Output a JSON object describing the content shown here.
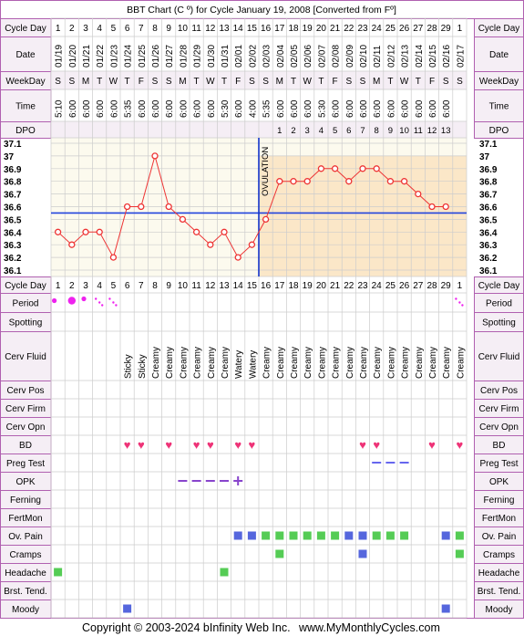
{
  "title": "BBT Chart (C º) for Cycle January 19, 2008  [Converted from Fº]",
  "footer": {
    "copyright": "Copyright © 2003-2024 bInfinity Web Inc.",
    "site": "www.MyMonthlyCycles.com"
  },
  "row_labels": {
    "cycle_day": "Cycle Day",
    "date": "Date",
    "weekday": "WeekDay",
    "time": "Time",
    "dpo": "DPO",
    "period": "Period",
    "spotting": "Spotting",
    "cerv_fluid": "Cerv Fluid",
    "cerv_pos": "Cerv Pos",
    "cerv_firm": "Cerv Firm",
    "cerv_opn": "Cerv Opn",
    "bd": "BD",
    "preg_test": "Preg Test",
    "opk": "OPK",
    "ferning": "Ferning",
    "fertmon": "FertMon",
    "ov_pain": "Ov. Pain",
    "cramps": "Cramps",
    "headache": "Headache",
    "brst_tend": "Brst. Tend.",
    "moody": "Moody"
  },
  "ovulation_label": "OVULATION",
  "colors": {
    "border": "#b060b0",
    "header_bg": "#f5eef5",
    "grid": "#cccccc",
    "pre_bg": "#fcfaee",
    "post_bg": "#fbe7c8",
    "temp_line": "#ee3333",
    "coverline": "#2244dd",
    "ovulation_line": "#1133cc",
    "period": "#ee22ee",
    "heart": "#ee3377",
    "opk": "#8844cc",
    "preg": "#6666ee",
    "ov_pain": "#5566dd",
    "green_mark": "#55cc55",
    "blue_mark": "#5566dd"
  },
  "chart_data": {
    "type": "line",
    "title": "BBT Chart (C º) for Cycle January 19, 2008  [Converted from Fº]",
    "cycle_days": [
      1,
      2,
      3,
      4,
      5,
      6,
      7,
      8,
      9,
      10,
      11,
      12,
      13,
      14,
      15,
      16,
      17,
      18,
      19,
      20,
      21,
      22,
      23,
      24,
      25,
      26,
      27,
      28,
      29,
      1
    ],
    "dates": [
      "01/19",
      "01/20",
      "01/21",
      "01/22",
      "01/23",
      "01/24",
      "01/25",
      "01/26",
      "01/27",
      "01/28",
      "01/29",
      "01/30",
      "01/31",
      "02/01",
      "02/02",
      "02/03",
      "02/04",
      "02/05",
      "02/06",
      "02/07",
      "02/08",
      "02/09",
      "02/10",
      "02/11",
      "02/12",
      "02/13",
      "02/14",
      "02/15",
      "02/16",
      "02/17"
    ],
    "weekdays": [
      "S",
      "S",
      "M",
      "T",
      "W",
      "T",
      "F",
      "S",
      "S",
      "M",
      "T",
      "W",
      "T",
      "F",
      "S",
      "S",
      "M",
      "T",
      "W",
      "T",
      "F",
      "S",
      "S",
      "M",
      "T",
      "W",
      "T",
      "F",
      "S",
      "S"
    ],
    "times": [
      "5:10",
      "6:00",
      "6:00",
      "6:00",
      "6:00",
      "5:35",
      "6:00",
      "6:00",
      "6:00",
      "6:00",
      "6:00",
      "6:00",
      "5:30",
      "6:00",
      "4:00",
      "5:35",
      "6:00",
      "6:00",
      "6:00",
      "5:30",
      "6:00",
      "6:00",
      "6:00",
      "6:00",
      "6:00",
      "6:00",
      "6:00",
      "6:00",
      "6:00",
      ""
    ],
    "dpo": [
      "",
      "",
      "",
      "",
      "",
      "",
      "",
      "",
      "",
      "",
      "",
      "",
      "",
      "",
      "",
      "",
      "1",
      "2",
      "3",
      "4",
      "5",
      "6",
      "7",
      "8",
      "9",
      "10",
      "11",
      "12",
      "13",
      ""
    ],
    "temperatures": [
      36.4,
      36.3,
      36.4,
      36.4,
      36.2,
      36.6,
      36.6,
      37.0,
      36.6,
      36.5,
      36.4,
      36.3,
      36.4,
      36.2,
      36.3,
      36.5,
      36.8,
      36.8,
      36.8,
      36.9,
      36.9,
      36.8,
      36.9,
      36.9,
      36.8,
      36.8,
      36.7,
      36.6,
      36.6,
      null
    ],
    "y_ticks": [
      37.1,
      37.0,
      36.9,
      36.8,
      36.7,
      36.6,
      36.5,
      36.4,
      36.3,
      36.2,
      36.1
    ],
    "ylim": [
      36.1,
      37.1
    ],
    "coverline": 36.55,
    "ovulation_after_day_index": 15,
    "period": [
      1,
      1,
      1,
      2,
      2,
      0,
      0,
      0,
      0,
      0,
      0,
      0,
      0,
      0,
      0,
      0,
      0,
      0,
      0,
      0,
      0,
      0,
      0,
      0,
      0,
      0,
      0,
      0,
      0,
      2
    ],
    "cerv_fluid": [
      "",
      "",
      "",
      "",
      "",
      "Sticky",
      "Sticky",
      "Creamy",
      "Creamy",
      "Creamy",
      "Creamy",
      "Creamy",
      "Creamy",
      "Watery",
      "Watery",
      "Creamy",
      "Creamy",
      "Creamy",
      "Creamy",
      "Creamy",
      "Creamy",
      "Creamy",
      "Creamy",
      "Creamy",
      "Creamy",
      "Creamy",
      "Creamy",
      "Creamy",
      "Creamy",
      "Creamy"
    ],
    "bd": [
      0,
      0,
      0,
      0,
      0,
      1,
      1,
      0,
      1,
      0,
      1,
      1,
      0,
      1,
      1,
      0,
      0,
      0,
      0,
      0,
      0,
      0,
      1,
      1,
      0,
      0,
      0,
      1,
      0,
      1
    ],
    "preg_test": [
      0,
      0,
      0,
      0,
      0,
      0,
      0,
      0,
      0,
      0,
      0,
      0,
      0,
      0,
      0,
      0,
      0,
      0,
      0,
      0,
      0,
      0,
      0,
      1,
      1,
      1,
      0,
      0,
      0,
      0
    ],
    "opk": [
      0,
      0,
      0,
      0,
      0,
      0,
      0,
      0,
      0,
      1,
      1,
      1,
      1,
      2,
      0,
      0,
      0,
      0,
      0,
      0,
      0,
      0,
      0,
      0,
      0,
      0,
      0,
      0,
      0,
      0
    ],
    "ov_pain": [
      "",
      "",
      "",
      "",
      "",
      "",
      "",
      "",
      "",
      "",
      "",
      "",
      "",
      "b",
      "b",
      "g",
      "g",
      "g",
      "g",
      "g",
      "g",
      "b",
      "b",
      "g",
      "g",
      "g",
      "",
      "",
      "b",
      "g"
    ],
    "cramps": [
      "",
      "",
      "",
      "",
      "",
      "",
      "",
      "",
      "",
      "",
      "",
      "",
      "",
      "",
      "",
      "",
      "g",
      "",
      "",
      "",
      "",
      "",
      "b",
      "",
      "",
      "",
      "",
      "",
      "",
      "g"
    ],
    "headache": [
      "g",
      "",
      "",
      "",
      "",
      "",
      "",
      "",
      "",
      "",
      "",
      "",
      "g",
      "",
      "",
      "",
      "",
      "",
      "",
      "",
      "",
      "",
      "",
      "",
      "",
      "",
      "",
      "",
      "",
      ""
    ],
    "moody": [
      "",
      "",
      "",
      "",
      "",
      "b",
      "",
      "",
      "",
      "",
      "",
      "",
      "",
      "",
      "",
      "",
      "",
      "",
      "",
      "",
      "",
      "",
      "",
      "",
      "",
      "",
      "",
      "",
      "b",
      ""
    ]
  }
}
